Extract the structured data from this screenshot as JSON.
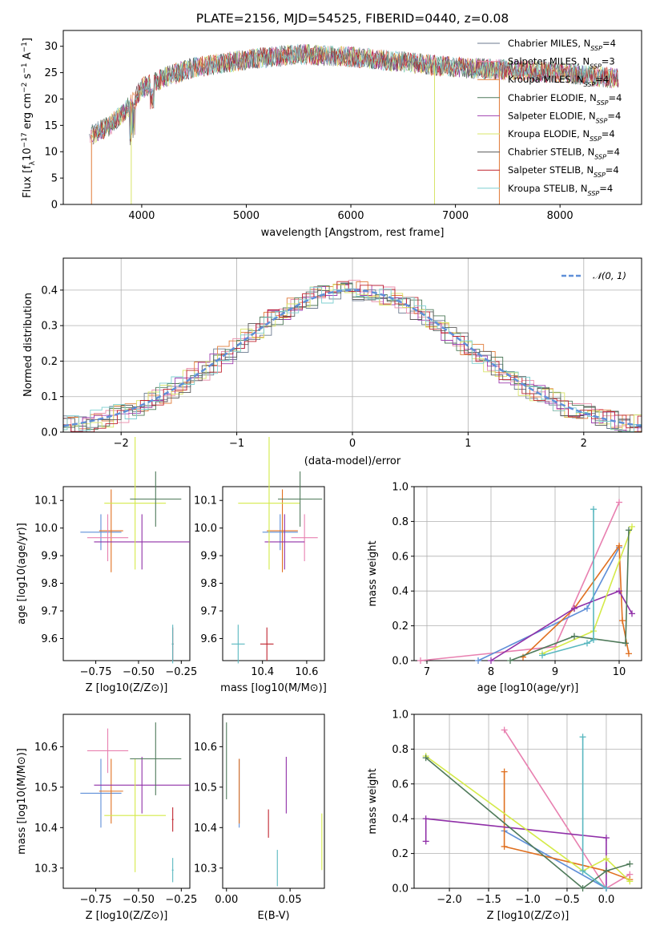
{
  "colors": {
    "series": [
      "#6b7a8f",
      "#e88aa8",
      "#e07b39",
      "#4f7a5a",
      "#a040b0",
      "#d8e468",
      "#5a5a5a",
      "#c0242f",
      "#7ecfd0"
    ],
    "blue": "#5f8fd8",
    "orange": "#e07020",
    "green": "#4f7a5a",
    "purple": "#9030a8",
    "yellow": "#d4ea48",
    "pink": "#e880b0",
    "cyan": "#5ab8c0",
    "red": "#c0242f",
    "grid": "#b0b0b0"
  },
  "chart_data": [
    {
      "type": "line",
      "title": "PLATE=2156, MJD=54525, FIBERID=0440, z=0.08",
      "xlabel": "wavelength [Angstrom, rest frame]",
      "ylabel": "Flux [f_λ10⁻¹⁷ erg cm⁻² s⁻¹ A⁻¹]",
      "xlim": [
        3250,
        8780
      ],
      "ylim": [
        0,
        33
      ],
      "xticks": [
        4000,
        5000,
        6000,
        7000,
        8000
      ],
      "yticks": [
        0,
        5,
        10,
        15,
        20,
        25,
        30
      ],
      "legend_position": "upper right",
      "series": [
        {
          "name": "Chabrier MILES, N_SSP=4"
        },
        {
          "name": "Salpeter MILES, N_SSP=3"
        },
        {
          "name": "Kroupa MILES, N_SSP=4"
        },
        {
          "name": "Chabrier ELODIE, N_SSP=4"
        },
        {
          "name": "Salpeter ELODIE, N_SSP=4"
        },
        {
          "name": "Kroupa ELODIE, N_SSP=4"
        },
        {
          "name": "Chabrier STELIB, N_SSP=4"
        },
        {
          "name": "Salpeter STELIB, N_SSP=4"
        },
        {
          "name": "Kroupa STELIB, N_SSP=4"
        }
      ],
      "continuum": {
        "x": [
          3500,
          3700,
          3900,
          4000,
          4200,
          4500,
          5000,
          5500,
          6000,
          6500,
          7000,
          7500,
          8000,
          8500
        ],
        "y": [
          13,
          15,
          19,
          22,
          24,
          26,
          27.5,
          28.5,
          28,
          27,
          26,
          25.5,
          25,
          24
        ]
      },
      "drops": [
        3520,
        3900,
        6800,
        7420
      ]
    },
    {
      "type": "bar",
      "xlabel": "(data-model)/error",
      "ylabel": "Normed distribution",
      "xlim": [
        -2.5,
        2.5
      ],
      "ylim": [
        0,
        0.49
      ],
      "xticks": [
        -2,
        -1,
        0,
        1,
        2
      ],
      "yticks": [
        0.0,
        0.1,
        0.2,
        0.3,
        0.4
      ],
      "grid": true,
      "legend_position": "upper right",
      "reference_curve": {
        "name": "𝒩(0, 1)",
        "mean": 0,
        "sigma": 1,
        "scale": 0.4
      },
      "bin_width": 0.1
    },
    {
      "type": "scatter",
      "xlabel": "Z [log10(Z/Z⊙)]",
      "ylabel": "age  [log10(age/yr)]",
      "xlim": [
        -0.94,
        -0.2
      ],
      "ylim": [
        9.52,
        10.15
      ],
      "xticks": [
        -0.75,
        -0.5,
        -0.25
      ],
      "yticks": [
        9.6,
        9.7,
        9.8,
        9.9,
        10.0,
        10.1
      ],
      "points": [
        {
          "color": "blue",
          "x": -0.72,
          "xerr": 0.12,
          "y": 9.985,
          "yerr": 0.065
        },
        {
          "color": "orange",
          "x": -0.66,
          "xerr": 0.07,
          "y": 9.99,
          "yerr": 0.15
        },
        {
          "color": "pink",
          "x": -0.68,
          "xerr": 0.12,
          "y": 9.965,
          "yerr": 0.085
        },
        {
          "color": "purple",
          "x": -0.48,
          "xerr": 0.28,
          "y": 9.95,
          "yerr": 0.1
        },
        {
          "color": "yellow",
          "x": -0.52,
          "xerr": 0.18,
          "y": 10.09,
          "yerr": 0.24
        },
        {
          "color": "green",
          "x": -0.4,
          "xerr": 0.15,
          "y": 10.105,
          "yerr": 0.1
        },
        {
          "color": "red",
          "x": -0.3,
          "xerr": 0.005,
          "y": 9.58,
          "yerr": 0.06
        },
        {
          "color": "cyan",
          "x": -0.3,
          "xerr": 0.005,
          "y": 9.58,
          "yerr": 0.07
        }
      ]
    },
    {
      "type": "scatter",
      "xlabel": "mass [log10(M/M⊙)]",
      "ylabel": "",
      "xlim": [
        10.22,
        10.68
      ],
      "ylim": [
        9.52,
        10.15
      ],
      "xticks": [
        10.4,
        10.6
      ],
      "yticks": [
        9.6,
        9.7,
        9.8,
        9.9,
        10.0,
        10.1
      ],
      "points": [
        {
          "color": "blue",
          "x": 10.48,
          "xerr": 0.08,
          "y": 9.985,
          "yerr": 0.065
        },
        {
          "color": "orange",
          "x": 10.49,
          "xerr": 0.07,
          "y": 9.99,
          "yerr": 0.15
        },
        {
          "color": "pink",
          "x": 10.59,
          "xerr": 0.06,
          "y": 9.965,
          "yerr": 0.085
        },
        {
          "color": "purple",
          "x": 10.5,
          "xerr": 0.09,
          "y": 9.95,
          "yerr": 0.1
        },
        {
          "color": "yellow",
          "x": 10.43,
          "xerr": 0.14,
          "y": 10.09,
          "yerr": 0.24
        },
        {
          "color": "green",
          "x": 10.57,
          "xerr": 0.1,
          "y": 10.105,
          "yerr": 0.1
        },
        {
          "color": "red",
          "x": 10.42,
          "xerr": 0.03,
          "y": 9.58,
          "yerr": 0.06
        },
        {
          "color": "cyan",
          "x": 10.29,
          "xerr": 0.03,
          "y": 9.58,
          "yerr": 0.07
        }
      ]
    },
    {
      "type": "line",
      "xlabel": "age  [log10(age/yr)]",
      "ylabel": "mass weight",
      "xlim": [
        6.8,
        10.35
      ],
      "ylim": [
        0,
        1.0
      ],
      "xticks": [
        7,
        8,
        9,
        10
      ],
      "yticks": [
        0.0,
        0.2,
        0.4,
        0.6,
        0.8,
        1.0
      ],
      "grid": true,
      "series": [
        {
          "color": "pink",
          "x": [
            6.9,
            9.0,
            10.0
          ],
          "y": [
            0.0,
            0.08,
            0.91
          ]
        },
        {
          "color": "blue",
          "x": [
            7.8,
            9.5,
            10.0
          ],
          "y": [
            0.0,
            0.3,
            0.65
          ]
        },
        {
          "color": "orange",
          "x": [
            8.5,
            9.3,
            10.0,
            10.05,
            10.15
          ],
          "y": [
            0.02,
            0.3,
            0.66,
            0.23,
            0.04
          ]
        },
        {
          "color": "purple",
          "x": [
            8.0,
            9.3,
            10.0,
            10.2
          ],
          "y": [
            0.0,
            0.3,
            0.4,
            0.27
          ]
        },
        {
          "color": "yellow",
          "x": [
            8.8,
            9.6,
            10.2
          ],
          "y": [
            0.04,
            0.17,
            0.77
          ]
        },
        {
          "color": "green",
          "x": [
            8.3,
            9.3,
            10.1,
            10.15
          ],
          "y": [
            0.0,
            0.14,
            0.1,
            0.75
          ]
        },
        {
          "color": "cyan",
          "x": [
            8.8,
            9.5,
            9.6,
            9.6
          ],
          "y": [
            0.03,
            0.1,
            0.12,
            0.87
          ]
        }
      ]
    },
    {
      "type": "scatter",
      "xlabel": "Z [log10(Z/Z⊙)]",
      "ylabel": "mass [log10(M/M⊙)]",
      "xlim": [
        -0.94,
        -0.2
      ],
      "ylim": [
        10.25,
        10.68
      ],
      "xticks": [
        -0.75,
        -0.5,
        -0.25
      ],
      "yticks": [
        10.3,
        10.4,
        10.5,
        10.6
      ],
      "points": [
        {
          "color": "blue",
          "x": -0.72,
          "xerr": 0.12,
          "y": 10.485,
          "yerr": 0.085
        },
        {
          "color": "orange",
          "x": -0.66,
          "xerr": 0.07,
          "y": 10.49,
          "yerr": 0.08
        },
        {
          "color": "pink",
          "x": -0.68,
          "xerr": 0.12,
          "y": 10.59,
          "yerr": 0.055
        },
        {
          "color": "purple",
          "x": -0.48,
          "xerr": 0.28,
          "y": 10.505,
          "yerr": 0.07
        },
        {
          "color": "yellow",
          "x": -0.52,
          "xerr": 0.18,
          "y": 10.43,
          "yerr": 0.14
        },
        {
          "color": "green",
          "x": -0.4,
          "xerr": 0.15,
          "y": 10.57,
          "yerr": 0.09
        },
        {
          "color": "red",
          "x": -0.3,
          "xerr": 0.005,
          "y": 10.42,
          "yerr": 0.03
        },
        {
          "color": "cyan",
          "x": -0.3,
          "xerr": 0.005,
          "y": 10.295,
          "yerr": 0.03
        }
      ]
    },
    {
      "type": "scatter",
      "xlabel": "E(B-V)",
      "ylabel": "",
      "xlim": [
        -0.003,
        0.077
      ],
      "ylim": [
        10.25,
        10.68
      ],
      "xticks": [
        0.0,
        0.05
      ],
      "yticks": [
        10.3,
        10.4,
        10.5,
        10.6
      ],
      "points": [
        {
          "color": "green",
          "x": 0.0,
          "yerr": 0.095,
          "y": 10.565
        },
        {
          "color": "blue",
          "x": 0.01,
          "yerr": 0.085,
          "y": 10.485
        },
        {
          "color": "orange",
          "x": 0.01,
          "yerr": 0.08,
          "y": 10.49
        },
        {
          "color": "red",
          "x": 0.033,
          "yerr": 0.035,
          "y": 10.41
        },
        {
          "color": "cyan",
          "x": 0.04,
          "yerr": 0.045,
          "y": 10.3
        },
        {
          "color": "purple",
          "x": 0.047,
          "yerr": 0.07,
          "y": 10.505
        },
        {
          "color": "yellow",
          "x": 0.075,
          "yerr": 0.07,
          "y": 10.365
        }
      ]
    },
    {
      "type": "line",
      "xlabel": "Z [log10(Z/Z⊙)]",
      "ylabel": "mass weight",
      "xlim": [
        -2.45,
        0.45
      ],
      "ylim": [
        0,
        1.0
      ],
      "xticks": [
        -2.0,
        -1.5,
        -1.0,
        -0.5,
        0.0
      ],
      "yticks": [
        0.0,
        0.2,
        0.4,
        0.6,
        0.8,
        1.0
      ],
      "grid": true,
      "series": [
        {
          "color": "pink",
          "x": [
            -1.3,
            0.0,
            0.3
          ],
          "y": [
            0.91,
            0.0,
            0.08
          ]
        },
        {
          "color": "blue",
          "x": [
            -1.3,
            0.0
          ],
          "y": [
            0.33,
            0.0
          ]
        },
        {
          "color": "orange",
          "x": [
            -1.3,
            -1.3,
            0.0,
            0.3
          ],
          "y": [
            0.67,
            0.24,
            0.1,
            0.05
          ]
        },
        {
          "color": "purple",
          "x": [
            -2.3,
            -2.3,
            0.0,
            0.0
          ],
          "y": [
            0.27,
            0.4,
            0.29,
            0.0
          ]
        },
        {
          "color": "yellow",
          "x": [
            -2.3,
            -0.3,
            0.0,
            0.3
          ],
          "y": [
            0.76,
            0.1,
            0.17,
            0.04
          ]
        },
        {
          "color": "green",
          "x": [
            -2.3,
            -0.3,
            0.0,
            0.3
          ],
          "y": [
            0.75,
            0.0,
            0.1,
            0.14
          ]
        },
        {
          "color": "cyan",
          "x": [
            -0.3,
            -0.3,
            0.0
          ],
          "y": [
            0.87,
            0.1,
            0.0
          ]
        }
      ]
    }
  ]
}
